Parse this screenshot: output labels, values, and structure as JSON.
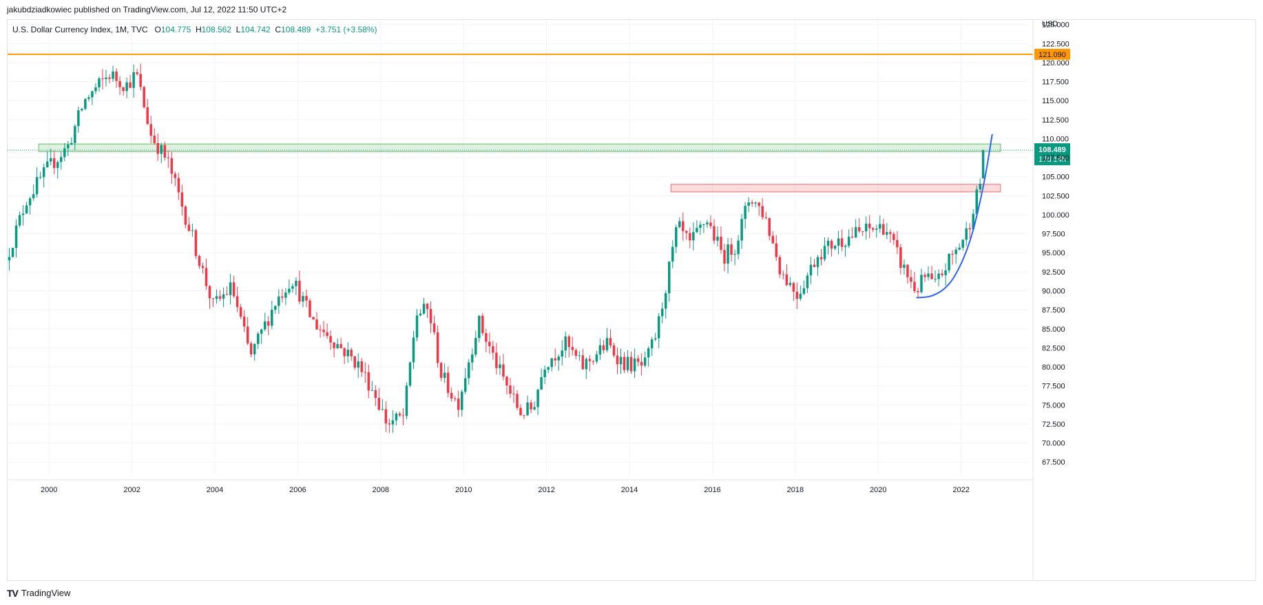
{
  "header": {
    "published": "jakubdziadkowiec published on TradingView.com, Jul 12, 2022 11:50 UTC+2"
  },
  "legend": {
    "symbol": "U.S. Dollar Currency Index, 1M, TVC",
    "o_label": "O",
    "o_value": "104.775",
    "h_label": "H",
    "h_value": "108.562",
    "l_label": "L",
    "l_value": "104.742",
    "c_label": "C",
    "c_value": "108.489",
    "change": "+3.751 (+3.58%)"
  },
  "footer": {
    "brand": "TradingView",
    "logo": "tradingview-logo"
  },
  "colors": {
    "up": "#089981",
    "down": "#f23645",
    "resistance_line": "#ff9800",
    "green_zone": "#a5d6a7",
    "red_zone": "#f7a1a8",
    "curve": "#2962ff"
  },
  "chart_data": {
    "type": "candlestick",
    "title": "U.S. Dollar Currency Index, 1M, TVC",
    "currency": "USD",
    "xlim": [
      1999.0,
      2023.6
    ],
    "ylim": [
      65.8,
      125.6
    ],
    "x_ticks": [
      "2000",
      "2002",
      "2004",
      "2006",
      "2008",
      "2010",
      "2012",
      "2014",
      "2016",
      "2018",
      "2020",
      "2022"
    ],
    "y_ticks": [
      "67.500",
      "70.000",
      "72.500",
      "75.000",
      "77.500",
      "80.000",
      "82.500",
      "85.000",
      "87.500",
      "90.000",
      "92.500",
      "95.000",
      "97.500",
      "100.000",
      "102.500",
      "105.000",
      "107.500",
      "110.000",
      "112.500",
      "115.000",
      "117.500",
      "120.000",
      "122.500",
      "125.000"
    ],
    "grid": true,
    "last_price": "108.489",
    "countdown": "17d 14h",
    "horizontal_line": {
      "value": 121.09,
      "label": "121.090"
    },
    "zones": [
      {
        "name": "green-zone",
        "x_from": 1999.75,
        "x_to": 2022.95,
        "y_low": 108.3,
        "y_high": 109.3
      },
      {
        "name": "red-zone",
        "x_from": 2015.0,
        "x_to": 2022.95,
        "y_low": 103.0,
        "y_high": 104.0
      }
    ],
    "curve": [
      [
        2020.92,
        89.1
      ],
      [
        2021.3,
        89.2
      ],
      [
        2021.7,
        90.6
      ],
      [
        2022.0,
        93.4
      ],
      [
        2022.25,
        97.0
      ],
      [
        2022.45,
        101.5
      ],
      [
        2022.6,
        105.5
      ],
      [
        2022.75,
        110.6
      ]
    ],
    "anchors": [
      [
        1999.0,
        94.0
      ],
      [
        1999.5,
        102.0
      ],
      [
        2000.0,
        106.0
      ],
      [
        2000.5,
        109.0
      ],
      [
        2000.9,
        115.0
      ],
      [
        2001.5,
        118.5
      ],
      [
        2001.9,
        117.0
      ],
      [
        2002.15,
        118.5
      ],
      [
        2002.5,
        110.5
      ],
      [
        2002.9,
        107.0
      ],
      [
        2003.5,
        97.0
      ],
      [
        2004.0,
        88.0
      ],
      [
        2004.45,
        90.5
      ],
      [
        2004.9,
        81.3
      ],
      [
        2005.5,
        88.5
      ],
      [
        2005.9,
        91.7
      ],
      [
        2006.4,
        86.0
      ],
      [
        2006.9,
        83.5
      ],
      [
        2007.5,
        80.3
      ],
      [
        2007.9,
        76.5
      ],
      [
        2008.2,
        72.5
      ],
      [
        2008.6,
        73.5
      ],
      [
        2008.9,
        87.0
      ],
      [
        2009.2,
        87.5
      ],
      [
        2009.5,
        79.0
      ],
      [
        2009.9,
        75.0
      ],
      [
        2010.4,
        86.0
      ],
      [
        2010.9,
        79.5
      ],
      [
        2011.4,
        74.0
      ],
      [
        2011.7,
        74.5
      ],
      [
        2012.0,
        80.5
      ],
      [
        2012.5,
        83.0
      ],
      [
        2012.9,
        80.0
      ],
      [
        2013.5,
        83.0
      ],
      [
        2013.9,
        80.5
      ],
      [
        2014.4,
        80.0
      ],
      [
        2014.7,
        84.5
      ],
      [
        2015.2,
        98.5
      ],
      [
        2015.5,
        96.0
      ],
      [
        2015.9,
        99.5
      ],
      [
        2016.3,
        94.5
      ],
      [
        2016.6,
        96.0
      ],
      [
        2016.95,
        102.5
      ],
      [
        2017.3,
        100.0
      ],
      [
        2017.7,
        92.5
      ],
      [
        2018.1,
        89.5
      ],
      [
        2018.6,
        95.0
      ],
      [
        2019.0,
        96.3
      ],
      [
        2019.5,
        97.5
      ],
      [
        2019.8,
        98.0
      ],
      [
        2020.2,
        98.5
      ],
      [
        2020.6,
        93.5
      ],
      [
        2020.95,
        90.0
      ],
      [
        2021.2,
        92.0
      ],
      [
        2021.4,
        90.5
      ],
      [
        2021.75,
        94.0
      ],
      [
        2022.0,
        96.0
      ],
      [
        2022.2,
        98.0
      ],
      [
        2022.35,
        101.5
      ],
      [
        2022.45,
        103.0
      ],
      [
        2022.53,
        104.8
      ]
    ],
    "last_candle": {
      "x": 2022.53,
      "open": 104.775,
      "high": 108.562,
      "low": 104.742,
      "close": 108.489
    }
  }
}
